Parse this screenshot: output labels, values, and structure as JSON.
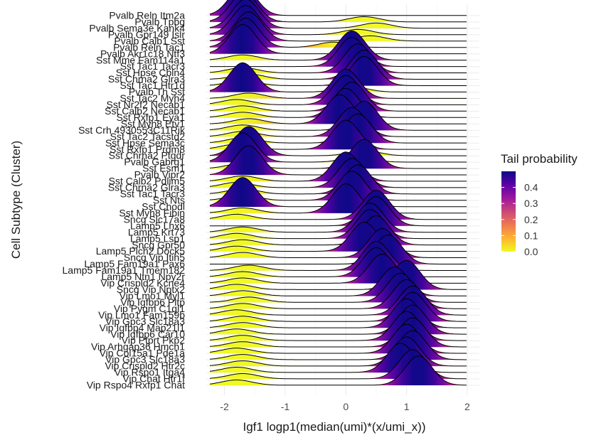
{
  "chart_data": {
    "type": "ridgeline",
    "xlabel": "Igf1 logp1(median(umi)*(x/umi_x))",
    "ylabel": "Cell Subtype (Cluster)",
    "xlim": [
      -2.3,
      2.2
    ],
    "xticks": [
      -2,
      -1,
      0,
      1,
      2
    ],
    "xtick_labels": [
      "-2",
      "-1",
      "0",
      "1",
      "2"
    ],
    "grid": true,
    "legend": {
      "title": "Tail probability",
      "position": "right",
      "ticks": [
        0.0,
        0.1,
        0.2,
        0.3,
        0.4
      ],
      "tick_labels": [
        "0.0",
        "0.1",
        "0.2",
        "0.3",
        "0.4"
      ],
      "range": [
        0,
        0.5
      ],
      "colors": [
        "#f0f921",
        "#fdb42f",
        "#ed7953",
        "#cc4778",
        "#9c179e",
        "#5c01a6",
        "#0d0887"
      ]
    },
    "series": [
      {
        "name": "Pvalb Reln Itm2a",
        "peak": -1.7,
        "secondary": null
      },
      {
        "name": "Pvalb Tpbg",
        "peak": -1.68,
        "secondary": 0.3
      },
      {
        "name": "Pvalb Sema3e Kank4",
        "peak": -1.65,
        "secondary": 0.5
      },
      {
        "name": "Pvalb Gpr149 Islr",
        "peak": -1.65,
        "secondary": 0.2
      },
      {
        "name": "Pvalb Calb1 Sst",
        "peak": -1.6,
        "secondary": 0.4
      },
      {
        "name": "Pvalb Reln Tac1",
        "peak": -1.65,
        "secondary": -0.2
      },
      {
        "name": "Pvalb Akr1c18 Ntf3",
        "peak": -1.7,
        "secondary": null
      },
      {
        "name": "Sst Mme Fam114a1",
        "peak": 0.1,
        "secondary": -1.7
      },
      {
        "name": "Sst Tac1 Tacr3",
        "peak": 0.1,
        "secondary": null
      },
      {
        "name": "Sst Hpse Cbln4",
        "peak": 0.2,
        "secondary": -1.7
      },
      {
        "name": "Sst Chrna2 Glra3",
        "peak": 0.3,
        "secondary": -1.6
      },
      {
        "name": "Sst Tac1 Htr1d",
        "peak": 0.3,
        "secondary": -1.7
      },
      {
        "name": "Pvalb Th Sst",
        "peak": -1.7,
        "secondary": 0.1
      },
      {
        "name": "Sst Tac2 Myh4",
        "peak": 0.0,
        "secondary": -1.6
      },
      {
        "name": "Sst Nr2f2 Necab1",
        "peak": 0.0,
        "secondary": -1.8
      },
      {
        "name": "Sst Calb2 Necab1",
        "peak": 0.1,
        "secondary": -1.7
      },
      {
        "name": "Sst Rxfp1 Eya1",
        "peak": 0.0,
        "secondary": -1.7
      },
      {
        "name": "Sst Myh8 Etv1",
        "peak": -0.1,
        "secondary": -1.6
      },
      {
        "name": "Sst Crh 4930553C11Rik",
        "peak": 0.3,
        "secondary": -1.7
      },
      {
        "name": "Sst Tac2 Tacstd2",
        "peak": 0.1,
        "secondary": -1.7
      },
      {
        "name": "Sst Hpse Sema3c",
        "peak": 0.2,
        "secondary": -1.7
      },
      {
        "name": "Sst Rxfp1 Prdm8",
        "peak": 0.0,
        "secondary": -1.8
      },
      {
        "name": "Sst Chrna2 Ptgdr",
        "peak": -1.6,
        "secondary": 0.3
      },
      {
        "name": "Pvalb Gabrg1",
        "peak": -1.7,
        "secondary": 0.2
      },
      {
        "name": "Sst Esm1",
        "peak": 0.3,
        "secondary": -1.7
      },
      {
        "name": "Pvalb Vipr2",
        "peak": -1.6,
        "secondary": null
      },
      {
        "name": "Sst Calb2 Pdlim5",
        "peak": 0.0,
        "secondary": -1.7
      },
      {
        "name": "Sst Chrna2 Glra3",
        "peak": 0.1,
        "secondary": -1.8
      },
      {
        "name": "Sst Tac1 Tacr3",
        "peak": 0.2,
        "secondary": -1.7
      },
      {
        "name": "Sst Nts",
        "peak": 0.1,
        "secondary": -1.7
      },
      {
        "name": "Sst Chodl",
        "peak": -1.7,
        "secondary": 0.2
      },
      {
        "name": "Sst Myh8 Fibin",
        "peak": 0.0,
        "secondary": -1.7
      },
      {
        "name": "Sncg Slc17a8",
        "peak": 0.5,
        "secondary": -1.8
      },
      {
        "name": "Lamp5 Lhx6",
        "peak": 0.5,
        "secondary": null
      },
      {
        "name": "Lamp5 Krt73",
        "peak": 0.4,
        "secondary": -1.7
      },
      {
        "name": "Lamp5 Lsp1",
        "peak": 0.4,
        "secondary": -1.8
      },
      {
        "name": "Sncg Gpr50",
        "peak": 0.5,
        "secondary": -1.7
      },
      {
        "name": "Lamp5 Plch2 Dock5",
        "peak": 0.3,
        "secondary": -1.8
      },
      {
        "name": "Sncg Vip Itih5",
        "peak": 0.6,
        "secondary": -1.7
      },
      {
        "name": "Lamp5 Fam19a1 Pax6",
        "peak": 0.7,
        "secondary": null
      },
      {
        "name": "Lamp5 Fam19a1 Tmem182",
        "peak": 0.5,
        "secondary": -1.6
      },
      {
        "name": "Lamp5 Ntn1 Npy2r",
        "peak": 0.5,
        "secondary": -1.7
      },
      {
        "name": "Vip Crispld2 Kcne4",
        "peak": 0.6,
        "secondary": -1.7
      },
      {
        "name": "Sncg Vip Nptx2",
        "peak": 1.0,
        "secondary": -1.8
      },
      {
        "name": "Vip Lmo1 Myl1",
        "peak": 0.8,
        "secondary": -1.7
      },
      {
        "name": "Vip Igfbp6 Pltp",
        "peak": 0.9,
        "secondary": -1.6
      },
      {
        "name": "Vip Pygm C1ql1",
        "peak": 1.0,
        "secondary": -1.7
      },
      {
        "name": "Vip Lmo1 Fam159b",
        "peak": 1.1,
        "secondary": -1.8
      },
      {
        "name": "Vip Gpc3 Slc18a3",
        "peak": 1.1,
        "secondary": -1.7
      },
      {
        "name": "Vip Igfbp4 Map21l1",
        "peak": 1.0,
        "secondary": -1.7
      },
      {
        "name": "Vip Igfbp6 Car10",
        "peak": 1.1,
        "secondary": -1.8
      },
      {
        "name": "Vip Ptprt Pkp2",
        "peak": 1.0,
        "secondary": -1.7
      },
      {
        "name": "Vip Arhgap36 Hmcn1",
        "peak": 1.1,
        "secondary": -1.7
      },
      {
        "name": "Vip Col15a1 Pde1a",
        "peak": 1.0,
        "secondary": -1.8
      },
      {
        "name": "Vip Gpc3 Slc18a3",
        "peak": 1.1,
        "secondary": -1.7
      },
      {
        "name": "Vip Crispld2 Htr2c",
        "peak": 1.0,
        "secondary": -1.7
      },
      {
        "name": "Vip Rspo1 Itga4",
        "peak": 0.9,
        "secondary": -1.8
      },
      {
        "name": "Vip Chat Htr1f",
        "peak": 1.1,
        "secondary": -1.7
      },
      {
        "name": "Vip Rspo4 Rxfp1 Chat",
        "peak": 1.2,
        "secondary": -1.8
      }
    ]
  }
}
